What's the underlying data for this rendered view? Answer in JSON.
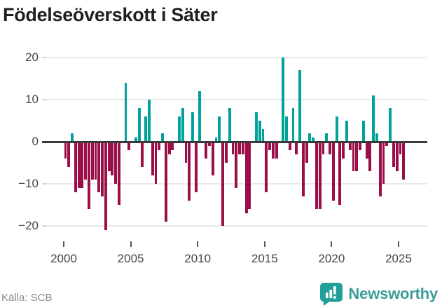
{
  "title": "Födelseöverskott i Säter",
  "source": "Källa: SCB",
  "logo": {
    "text": "Newsworthy",
    "text_color": "#3E9C98",
    "icon_color": "#21A099",
    "icon_name": "newsworthy-bar-chart-bubble-icon"
  },
  "axis": {
    "y_labels": [
      "20",
      "10",
      "0",
      "−10",
      "−20"
    ],
    "x_labels": [
      "2000",
      "2005",
      "2010",
      "2015",
      "2020",
      "2025"
    ]
  },
  "chart_data": {
    "type": "bar",
    "title": "Födelseöverskott i Säter",
    "xlabel": "",
    "ylabel": "",
    "frequency": "quarterly",
    "x_start": "2000Q1",
    "x_end": "2025Q2",
    "y_ticks": [
      20,
      10,
      0,
      -10,
      -20
    ],
    "ylim": [
      -22,
      21
    ],
    "x_tick_years": [
      2000,
      2005,
      2010,
      2015,
      2020,
      2025
    ],
    "grid": true,
    "legend": false,
    "positive_color": "#00A29A",
    "negative_color": "#9C0E48",
    "values": [
      -4,
      -6,
      2,
      -12,
      -11,
      -11,
      -9,
      -16,
      -9,
      -9,
      -12,
      -13,
      -21,
      -7,
      -8,
      -10,
      -15,
      0,
      14,
      -2,
      0,
      1,
      8,
      -6,
      6,
      10,
      -8,
      -10,
      -2,
      2,
      -19,
      -3,
      -2,
      0,
      6,
      8,
      -5,
      -14,
      7,
      -12,
      12,
      0,
      -4,
      -1,
      -8,
      1,
      6,
      -20,
      -5,
      8,
      -3,
      -11,
      -3,
      -3,
      -17,
      -16,
      0,
      7,
      5,
      3,
      -12,
      -2,
      -4,
      -4,
      0,
      20,
      6,
      -2,
      8,
      -3,
      17,
      -13,
      -5,
      2,
      1,
      -16,
      -16,
      -3,
      2,
      -3,
      -14,
      6,
      -15,
      -4,
      5,
      -2,
      -7,
      -7,
      -2,
      5,
      -4,
      -7,
      11,
      2,
      -13,
      -10,
      -1,
      8,
      -6,
      -7,
      -3,
      -9
    ]
  }
}
